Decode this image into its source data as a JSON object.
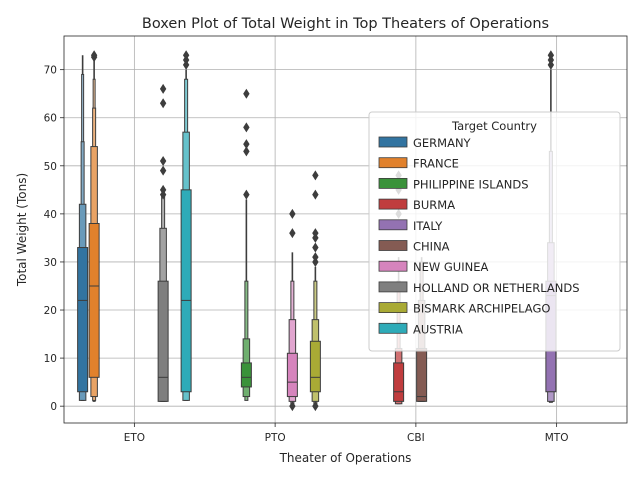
{
  "chart_data": {
    "type": "boxen",
    "title": "Boxen Plot of Total Weight in Top Theaters of Operations",
    "xlabel": "Theater of Operations",
    "ylabel": "Total Weight (Tons)",
    "categories": [
      "ETO",
      "PTO",
      "CBI",
      "MTO"
    ],
    "ylim": [
      -3.5,
      77
    ],
    "yticks": [
      0,
      10,
      20,
      30,
      40,
      50,
      60,
      70
    ],
    "grid": true,
    "legend": {
      "title": "Target Country",
      "position": "center-right"
    },
    "series": [
      {
        "name": "GERMANY",
        "color": "#3274a1",
        "category": "ETO",
        "boxes": [
          [
            3,
            33
          ],
          [
            1.2,
            42
          ],
          [
            1.2,
            55
          ],
          [
            1.2,
            69
          ]
        ],
        "median": 22,
        "whisker_max": 73,
        "outliers": []
      },
      {
        "name": "FRANCE",
        "color": "#e1812c",
        "category": "ETO",
        "boxes": [
          [
            6,
            38
          ],
          [
            2,
            54
          ],
          [
            1.2,
            62
          ],
          [
            1,
            68
          ]
        ],
        "median": 25,
        "whisker_max": 72,
        "outliers": [
          73,
          72.6
        ]
      },
      {
        "name": "PHILIPPINE ISLANDS",
        "color": "#3a923a",
        "category": "PTO",
        "boxes": [
          [
            4,
            9
          ],
          [
            2,
            14
          ],
          [
            1.2,
            26
          ]
        ],
        "median": 6,
        "whisker_max": 43,
        "outliers": [
          44,
          53,
          54.5,
          58,
          65
        ]
      },
      {
        "name": "BURMA",
        "color": "#c03d3e",
        "category": "CBI",
        "boxes": [
          [
            1,
            9
          ],
          [
            0.5,
            12
          ],
          [
            0.5,
            26
          ]
        ],
        "median": 3,
        "whisker_max": 31,
        "outliers": [
          40,
          45,
          48
        ]
      },
      {
        "name": "ITALY",
        "color": "#9372b2",
        "category": "MTO",
        "boxes": [
          [
            3,
            26
          ],
          [
            1,
            34
          ],
          [
            0.8,
            53
          ]
        ],
        "median": 23,
        "whisker_max": 70,
        "outliers": [
          71,
          72,
          73
        ]
      },
      {
        "name": "CHINA",
        "color": "#845b53",
        "category": "CBI",
        "boxes": [
          [
            1,
            12
          ],
          [
            1,
            22
          ],
          [
            1,
            30
          ]
        ],
        "median": 2,
        "whisker_max": 31,
        "outliers": []
      },
      {
        "name": "NEW GUINEA",
        "color": "#d684bd",
        "category": "PTO",
        "boxes": [
          [
            2,
            11
          ],
          [
            1,
            18
          ],
          [
            0.5,
            26
          ]
        ],
        "median": 5,
        "whisker_max": 32,
        "outliers": [
          0,
          36,
          40
        ]
      },
      {
        "name": "HOLLAND OR NETHERLANDS",
        "color": "#7f7f7f",
        "category": "ETO",
        "boxes": [
          [
            1,
            26
          ],
          [
            1,
            37
          ],
          [
            1,
            44
          ]
        ],
        "median": 6,
        "whisker_max": 44,
        "outliers": [
          44,
          45,
          49,
          51,
          63,
          66
        ]
      },
      {
        "name": "BISMARK ARCHIPELAGO",
        "color": "#a9aa35",
        "category": "PTO",
        "boxes": [
          [
            3,
            13.5
          ],
          [
            1,
            18
          ],
          [
            0.5,
            26
          ]
        ],
        "median": 6,
        "whisker_max": 29,
        "outliers": [
          0,
          30,
          31,
          33,
          35,
          36,
          44,
          48
        ]
      },
      {
        "name": "AUSTRIA",
        "color": "#2eabb8",
        "category": "ETO",
        "boxes": [
          [
            3,
            45
          ],
          [
            1.2,
            57
          ],
          [
            1.2,
            68
          ]
        ],
        "median": 22,
        "whisker_max": 70,
        "outliers": [
          71,
          72,
          73
        ]
      }
    ]
  }
}
